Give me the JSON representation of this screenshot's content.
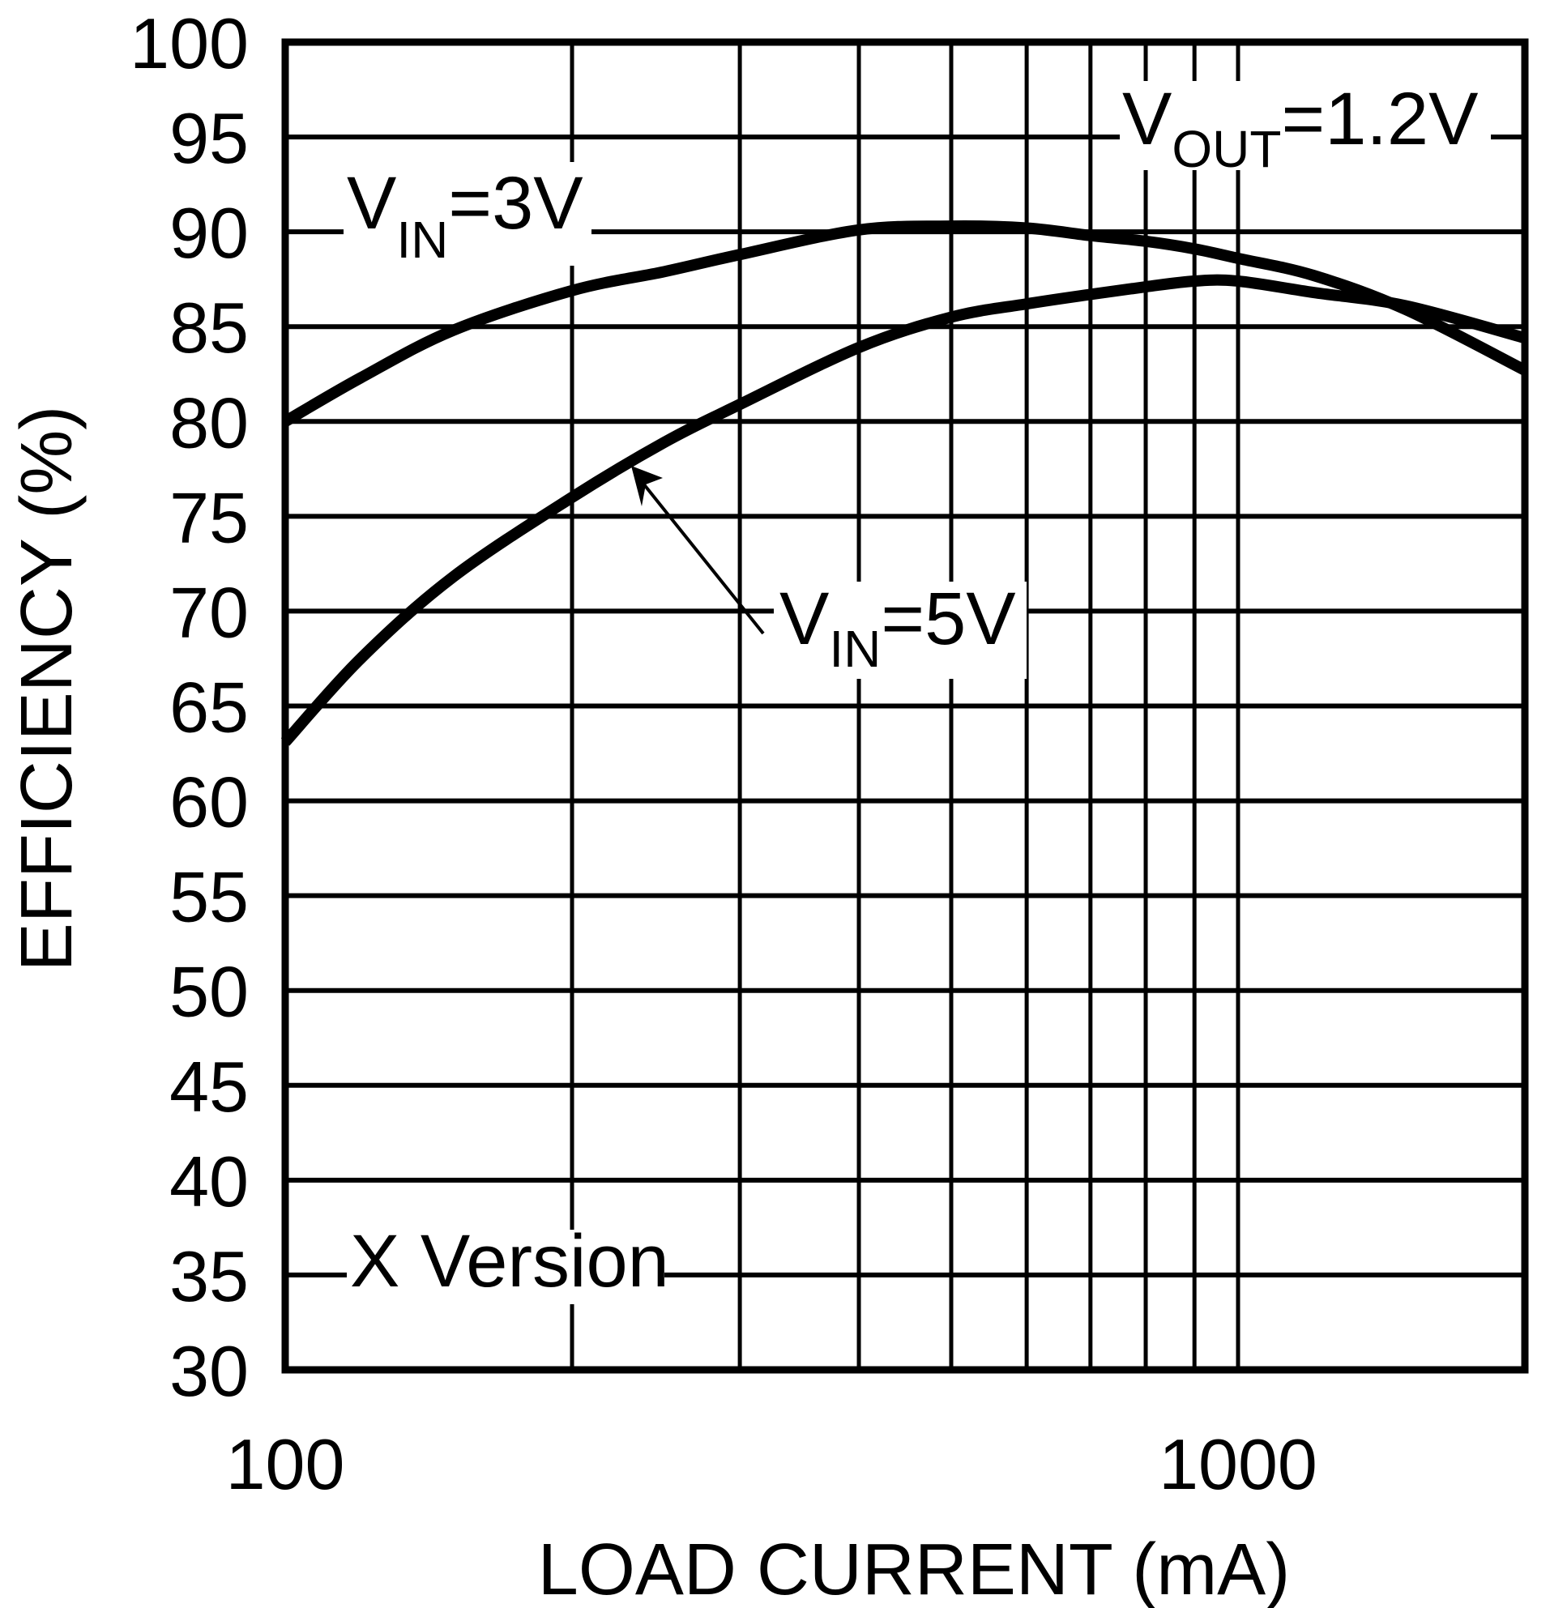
{
  "chart_data": {
    "type": "line",
    "title": "",
    "xlabel": "LOAD CURRENT (mA)",
    "ylabel": "EFFICIENCY (%)",
    "xscale": "log",
    "xlim": [
      100,
      2000
    ],
    "ylim": [
      30,
      100
    ],
    "grid": true,
    "y_ticks": [
      100,
      95,
      90,
      85,
      80,
      75,
      70,
      65,
      60,
      55,
      50,
      45,
      40,
      35,
      30
    ],
    "x_tick_labels": [
      {
        "value": 100,
        "label": "100"
      },
      {
        "value": 1000,
        "label": "1000"
      }
    ],
    "x_minor_gridlines": [
      200,
      300,
      400,
      500,
      600,
      700,
      800,
      900,
      1000
    ],
    "series": [
      {
        "name": "VIN=3V",
        "x": [
          100,
          120,
          150,
          200,
          250,
          300,
          400,
          500,
          600,
          700,
          800,
          900,
          1000,
          1200,
          1500,
          2000
        ],
        "values": [
          80.0,
          82.3,
          84.8,
          86.9,
          87.9,
          88.8,
          90.1,
          90.3,
          90.2,
          89.8,
          89.5,
          89.1,
          88.6,
          87.7,
          85.9,
          82.7
        ]
      },
      {
        "name": "VIN=5V",
        "x": [
          100,
          120,
          150,
          200,
          250,
          300,
          400,
          500,
          600,
          700,
          800,
          900,
          1000,
          1200,
          1500,
          2000
        ],
        "values": [
          63.1,
          67.5,
          71.8,
          76.0,
          78.9,
          80.9,
          83.9,
          85.5,
          86.2,
          86.7,
          87.1,
          87.4,
          87.4,
          86.8,
          86.1,
          84.4
        ]
      }
    ],
    "annotations": [
      {
        "id": "vin3",
        "main": "V",
        "sub": "IN",
        "rest": "=3V"
      },
      {
        "id": "vin5",
        "main": "V",
        "sub": "IN",
        "rest": "=5V",
        "arrow_to_series": "VIN=5V"
      },
      {
        "id": "vout",
        "main": "V",
        "sub": "OUT",
        "rest": "=1.2V"
      },
      {
        "id": "version",
        "text": "X Version"
      }
    ]
  }
}
